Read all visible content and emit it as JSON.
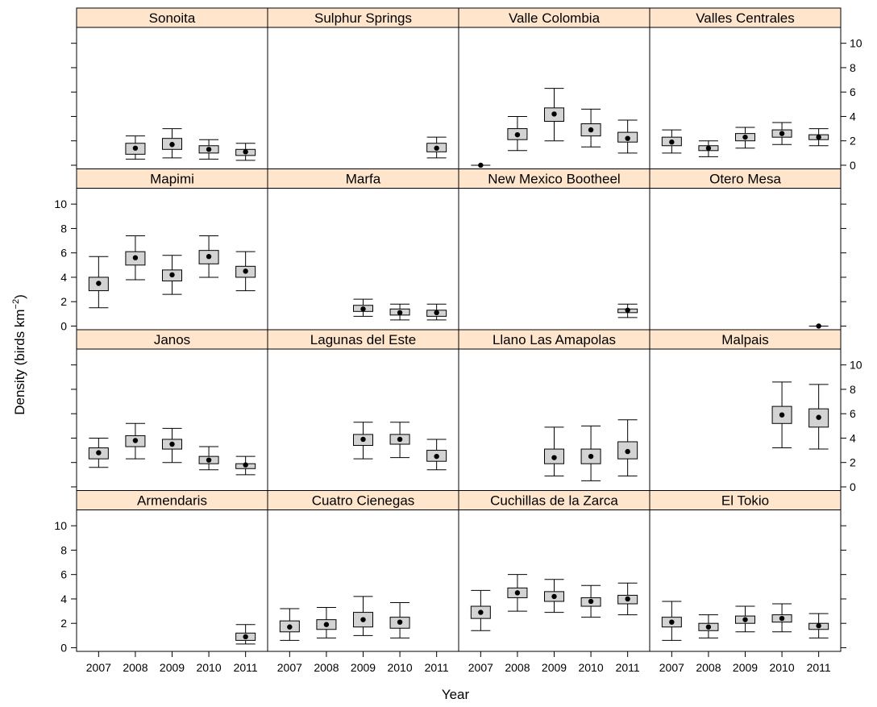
{
  "chart_data": {
    "type": "boxplot",
    "xlabel": "Year",
    "ylabel": "Density (birds km",
    "ylabel_sup": "−2",
    "ylabel_close": ")",
    "years": [
      "2007",
      "2008",
      "2009",
      "2010",
      "2011"
    ],
    "ylim": [
      -0.3,
      11.3
    ],
    "yticks": [
      "0",
      "2",
      "4",
      "6",
      "8",
      "10"
    ],
    "strip_color": "#ffe5cc",
    "box_fill": "#d3d3d3",
    "panels": [
      {
        "name": "Sonoita",
        "data": [
          {
            "year": "2008",
            "lo": 0.5,
            "q1": 0.9,
            "mean": 1.4,
            "q3": 1.8,
            "hi": 2.4
          },
          {
            "year": "2009",
            "lo": 0.6,
            "q1": 1.3,
            "mean": 1.7,
            "q3": 2.2,
            "hi": 3.0
          },
          {
            "year": "2010",
            "lo": 0.5,
            "q1": 1.0,
            "mean": 1.3,
            "q3": 1.6,
            "hi": 2.1
          },
          {
            "year": "2011",
            "lo": 0.4,
            "q1": 0.8,
            "mean": 1.1,
            "q3": 1.3,
            "hi": 1.8
          }
        ]
      },
      {
        "name": "Sulphur Springs",
        "data": [
          {
            "year": "2011",
            "lo": 0.6,
            "q1": 1.1,
            "mean": 1.4,
            "q3": 1.8,
            "hi": 2.3
          }
        ]
      },
      {
        "name": "Valle Colombia",
        "data": [
          {
            "year": "2007",
            "lo": 0.0,
            "q1": 0.0,
            "mean": 0.0,
            "q3": 0.0,
            "hi": 0.0
          },
          {
            "year": "2008",
            "lo": 1.2,
            "q1": 2.1,
            "mean": 2.5,
            "q3": 3.0,
            "hi": 4.0
          },
          {
            "year": "2009",
            "lo": 2.0,
            "q1": 3.6,
            "mean": 4.2,
            "q3": 4.7,
            "hi": 6.3
          },
          {
            "year": "2010",
            "lo": 1.5,
            "q1": 2.4,
            "mean": 2.9,
            "q3": 3.4,
            "hi": 4.6
          },
          {
            "year": "2011",
            "lo": 1.0,
            "q1": 1.9,
            "mean": 2.2,
            "q3": 2.7,
            "hi": 3.7
          }
        ]
      },
      {
        "name": "Valles Centrales",
        "data": [
          {
            "year": "2007",
            "lo": 1.0,
            "q1": 1.6,
            "mean": 1.9,
            "q3": 2.3,
            "hi": 2.9
          },
          {
            "year": "2008",
            "lo": 0.7,
            "q1": 1.2,
            "mean": 1.4,
            "q3": 1.6,
            "hi": 2.0
          },
          {
            "year": "2009",
            "lo": 1.4,
            "q1": 2.0,
            "mean": 2.3,
            "q3": 2.6,
            "hi": 3.1
          },
          {
            "year": "2010",
            "lo": 1.7,
            "q1": 2.3,
            "mean": 2.6,
            "q3": 2.9,
            "hi": 3.5
          },
          {
            "year": "2011",
            "lo": 1.6,
            "q1": 2.1,
            "mean": 2.3,
            "q3": 2.5,
            "hi": 3.0
          }
        ]
      },
      {
        "name": "Mapimi",
        "data": [
          {
            "year": "2007",
            "lo": 1.5,
            "q1": 2.9,
            "mean": 3.5,
            "q3": 4.0,
            "hi": 5.7
          },
          {
            "year": "2008",
            "lo": 3.8,
            "q1": 5.0,
            "mean": 5.6,
            "q3": 6.1,
            "hi": 7.4
          },
          {
            "year": "2009",
            "lo": 2.6,
            "q1": 3.7,
            "mean": 4.2,
            "q3": 4.6,
            "hi": 5.8
          },
          {
            "year": "2010",
            "lo": 4.0,
            "q1": 5.1,
            "mean": 5.7,
            "q3": 6.2,
            "hi": 7.4
          },
          {
            "year": "2011",
            "lo": 2.9,
            "q1": 4.0,
            "mean": 4.5,
            "q3": 4.9,
            "hi": 6.1
          }
        ]
      },
      {
        "name": "Marfa",
        "data": [
          {
            "year": "2009",
            "lo": 0.8,
            "q1": 1.2,
            "mean": 1.4,
            "q3": 1.7,
            "hi": 2.2
          },
          {
            "year": "2010",
            "lo": 0.5,
            "q1": 0.9,
            "mean": 1.1,
            "q3": 1.4,
            "hi": 1.8
          },
          {
            "year": "2011",
            "lo": 0.5,
            "q1": 0.8,
            "mean": 1.1,
            "q3": 1.3,
            "hi": 1.8
          }
        ]
      },
      {
        "name": "New Mexico Bootheel",
        "data": [
          {
            "year": "2011",
            "lo": 0.7,
            "q1": 1.1,
            "mean": 1.3,
            "q3": 1.4,
            "hi": 1.8
          }
        ]
      },
      {
        "name": "Otero Mesa",
        "data": [
          {
            "year": "2011",
            "lo": 0.0,
            "q1": 0.0,
            "mean": 0.0,
            "q3": 0.0,
            "hi": 0.0
          }
        ]
      },
      {
        "name": "Janos",
        "data": [
          {
            "year": "2007",
            "lo": 1.6,
            "q1": 2.3,
            "mean": 2.8,
            "q3": 3.2,
            "hi": 4.0
          },
          {
            "year": "2008",
            "lo": 2.3,
            "q1": 3.3,
            "mean": 3.8,
            "q3": 4.2,
            "hi": 5.2
          },
          {
            "year": "2009",
            "lo": 2.0,
            "q1": 3.1,
            "mean": 3.5,
            "q3": 3.9,
            "hi": 4.8
          },
          {
            "year": "2010",
            "lo": 1.4,
            "q1": 1.9,
            "mean": 2.2,
            "q3": 2.5,
            "hi": 3.3
          },
          {
            "year": "2011",
            "lo": 1.0,
            "q1": 1.5,
            "mean": 1.8,
            "q3": 1.9,
            "hi": 2.5
          }
        ]
      },
      {
        "name": "Lagunas del Este",
        "data": [
          {
            "year": "2009",
            "lo": 2.3,
            "q1": 3.4,
            "mean": 3.9,
            "q3": 4.3,
            "hi": 5.3
          },
          {
            "year": "2010",
            "lo": 2.4,
            "q1": 3.5,
            "mean": 3.9,
            "q3": 4.3,
            "hi": 5.3
          },
          {
            "year": "2011",
            "lo": 1.4,
            "q1": 2.1,
            "mean": 2.5,
            "q3": 3.0,
            "hi": 3.9
          }
        ]
      },
      {
        "name": "Llano Las Amapolas",
        "data": [
          {
            "year": "2009",
            "lo": 0.9,
            "q1": 1.9,
            "mean": 2.4,
            "q3": 3.1,
            "hi": 4.9
          },
          {
            "year": "2010",
            "lo": 0.5,
            "q1": 1.9,
            "mean": 2.5,
            "q3": 3.1,
            "hi": 5.0
          },
          {
            "year": "2011",
            "lo": 0.9,
            "q1": 2.3,
            "mean": 2.9,
            "q3": 3.7,
            "hi": 5.5
          }
        ]
      },
      {
        "name": "Malpais",
        "data": [
          {
            "year": "2010",
            "lo": 3.2,
            "q1": 5.2,
            "mean": 5.9,
            "q3": 6.6,
            "hi": 8.6
          },
          {
            "year": "2011",
            "lo": 3.1,
            "q1": 4.9,
            "mean": 5.7,
            "q3": 6.4,
            "hi": 8.4
          }
        ]
      },
      {
        "name": "Armendaris",
        "data": [
          {
            "year": "2011",
            "lo": 0.3,
            "q1": 0.6,
            "mean": 0.9,
            "q3": 1.2,
            "hi": 1.9
          }
        ]
      },
      {
        "name": "Cuatro Cienegas",
        "data": [
          {
            "year": "2007",
            "lo": 0.6,
            "q1": 1.3,
            "mean": 1.7,
            "q3": 2.2,
            "hi": 3.2
          },
          {
            "year": "2008",
            "lo": 0.8,
            "q1": 1.5,
            "mean": 1.9,
            "q3": 2.3,
            "hi": 3.3
          },
          {
            "year": "2009",
            "lo": 1.0,
            "q1": 1.7,
            "mean": 2.3,
            "q3": 2.9,
            "hi": 4.2
          },
          {
            "year": "2010",
            "lo": 0.8,
            "q1": 1.6,
            "mean": 2.1,
            "q3": 2.5,
            "hi": 3.7
          }
        ]
      },
      {
        "name": "Cuchillas de la Zarca",
        "data": [
          {
            "year": "2007",
            "lo": 1.4,
            "q1": 2.4,
            "mean": 2.9,
            "q3": 3.4,
            "hi": 4.7
          },
          {
            "year": "2008",
            "lo": 3.0,
            "q1": 4.1,
            "mean": 4.5,
            "q3": 4.9,
            "hi": 6.0
          },
          {
            "year": "2009",
            "lo": 2.9,
            "q1": 3.8,
            "mean": 4.2,
            "q3": 4.6,
            "hi": 5.6
          },
          {
            "year": "2010",
            "lo": 2.5,
            "q1": 3.4,
            "mean": 3.8,
            "q3": 4.1,
            "hi": 5.1
          },
          {
            "year": "2011",
            "lo": 2.7,
            "q1": 3.6,
            "mean": 4.0,
            "q3": 4.3,
            "hi": 5.3
          }
        ]
      },
      {
        "name": "El Tokio",
        "data": [
          {
            "year": "2007",
            "lo": 0.6,
            "q1": 1.7,
            "mean": 2.1,
            "q3": 2.5,
            "hi": 3.8
          },
          {
            "year": "2008",
            "lo": 0.8,
            "q1": 1.4,
            "mean": 1.7,
            "q3": 2.0,
            "hi": 2.7
          },
          {
            "year": "2009",
            "lo": 1.3,
            "q1": 2.0,
            "mean": 2.3,
            "q3": 2.6,
            "hi": 3.4
          },
          {
            "year": "2010",
            "lo": 1.3,
            "q1": 2.1,
            "mean": 2.4,
            "q3": 2.7,
            "hi": 3.6
          },
          {
            "year": "2011",
            "lo": 0.8,
            "q1": 1.5,
            "mean": 1.8,
            "q3": 2.0,
            "hi": 2.8
          }
        ]
      }
    ]
  }
}
